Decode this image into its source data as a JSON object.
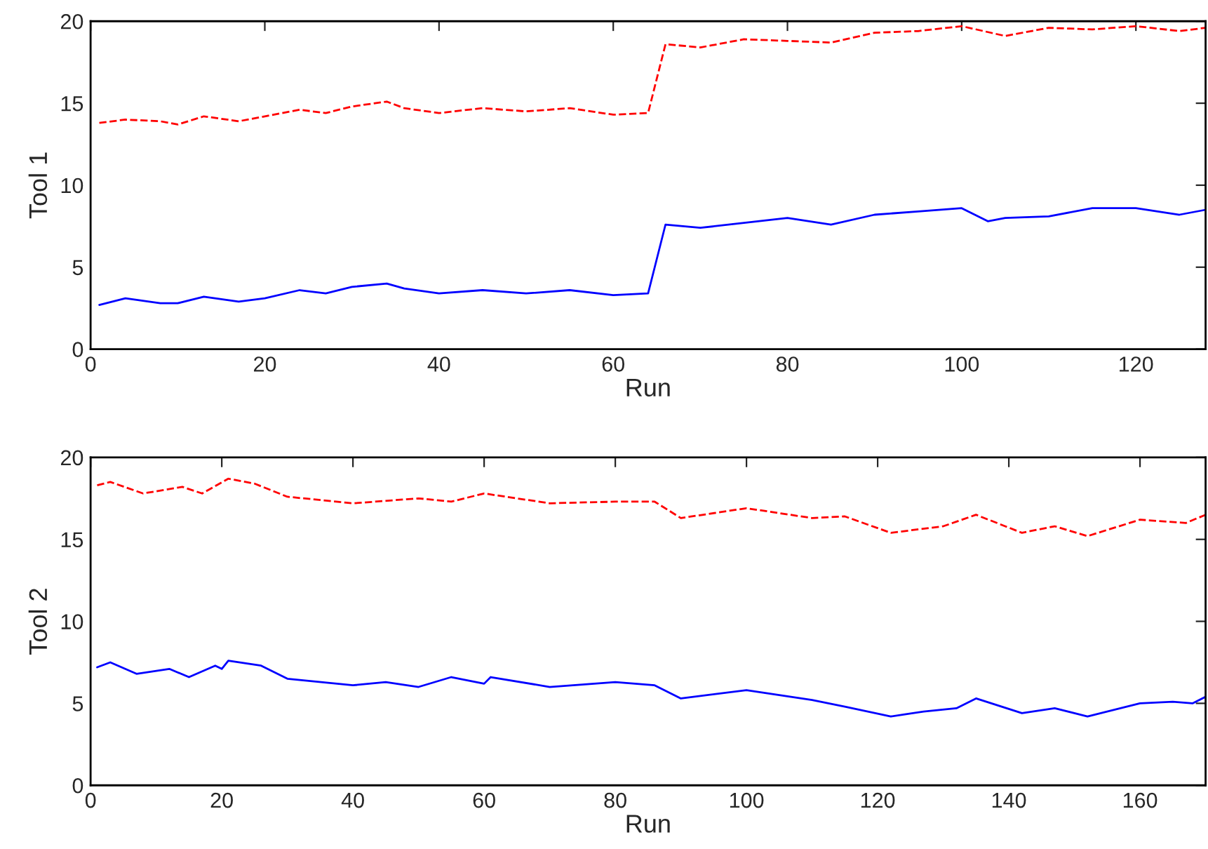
{
  "chart_data": [
    {
      "type": "line",
      "xlabel": "Run",
      "ylabel": "Tool 1",
      "xlim": [
        0,
        128
      ],
      "xticks": [
        0,
        20,
        40,
        60,
        80,
        100,
        120
      ],
      "ylim": [
        0,
        20
      ],
      "yticks": [
        0,
        5,
        10,
        15,
        20
      ],
      "grid": false,
      "legend": false,
      "series": [
        {
          "color": "#ff0000",
          "line_style": "dashed",
          "x": [
            1,
            4,
            8,
            10,
            13,
            17,
            20,
            24,
            27,
            30,
            34,
            36,
            40,
            45,
            50,
            55,
            60,
            64,
            66,
            70,
            75,
            80,
            85,
            90,
            95,
            100,
            105,
            110,
            115,
            120,
            125,
            128
          ],
          "values": [
            13.8,
            14.0,
            13.9,
            13.7,
            14.2,
            13.9,
            14.2,
            14.6,
            14.4,
            14.8,
            15.1,
            14.7,
            14.4,
            14.7,
            14.5,
            14.7,
            14.3,
            14.4,
            18.6,
            18.4,
            18.9,
            18.8,
            18.7,
            19.3,
            19.4,
            19.7,
            19.1,
            19.6,
            19.5,
            19.7,
            19.4,
            19.6
          ]
        },
        {
          "color": "#0000ff",
          "line_style": "solid",
          "x": [
            1,
            4,
            8,
            10,
            13,
            17,
            20,
            24,
            27,
            30,
            34,
            36,
            40,
            45,
            50,
            55,
            60,
            64,
            66,
            70,
            75,
            80,
            85,
            90,
            95,
            100,
            103,
            105,
            110,
            115,
            120,
            125,
            128
          ],
          "values": [
            2.7,
            3.1,
            2.8,
            2.8,
            3.2,
            2.9,
            3.1,
            3.6,
            3.4,
            3.8,
            4.0,
            3.7,
            3.4,
            3.6,
            3.4,
            3.6,
            3.3,
            3.4,
            7.6,
            7.4,
            7.7,
            8.0,
            7.6,
            8.2,
            8.4,
            8.6,
            7.8,
            8.0,
            8.1,
            8.6,
            8.6,
            8.2,
            8.5
          ]
        }
      ]
    },
    {
      "type": "line",
      "xlabel": "Run",
      "ylabel": "Tool 2",
      "xlim": [
        0,
        170
      ],
      "xticks": [
        0,
        20,
        40,
        60,
        80,
        100,
        120,
        140,
        160
      ],
      "ylim": [
        0,
        20
      ],
      "yticks": [
        0,
        5,
        10,
        15,
        20
      ],
      "grid": false,
      "legend": false,
      "series": [
        {
          "color": "#ff0000",
          "line_style": "dashed",
          "x": [
            1,
            3,
            8,
            14,
            17,
            21,
            25,
            30,
            40,
            50,
            55,
            60,
            70,
            80,
            86,
            90,
            100,
            110,
            115,
            122,
            130,
            135,
            142,
            147,
            152,
            160,
            167,
            170
          ],
          "values": [
            18.3,
            18.5,
            17.8,
            18.2,
            17.8,
            18.7,
            18.4,
            17.6,
            17.2,
            17.5,
            17.3,
            17.8,
            17.2,
            17.3,
            17.3,
            16.3,
            16.9,
            16.3,
            16.4,
            15.4,
            15.8,
            16.5,
            15.4,
            15.8,
            15.2,
            16.2,
            16.0,
            16.5
          ]
        },
        {
          "color": "#0000ff",
          "line_style": "solid",
          "x": [
            1,
            3,
            7,
            12,
            15,
            19,
            20,
            21,
            26,
            30,
            40,
            45,
            50,
            55,
            60,
            61,
            70,
            80,
            86,
            90,
            100,
            110,
            115,
            122,
            127,
            132,
            135,
            142,
            147,
            152,
            160,
            165,
            168,
            170
          ],
          "values": [
            7.2,
            7.5,
            6.8,
            7.1,
            6.6,
            7.3,
            7.1,
            7.6,
            7.3,
            6.5,
            6.1,
            6.3,
            6.0,
            6.6,
            6.2,
            6.6,
            6.0,
            6.3,
            6.1,
            5.3,
            5.8,
            5.2,
            4.8,
            4.2,
            4.5,
            4.7,
            5.3,
            4.4,
            4.7,
            4.2,
            5.0,
            5.1,
            5.0,
            5.4
          ]
        }
      ]
    }
  ]
}
